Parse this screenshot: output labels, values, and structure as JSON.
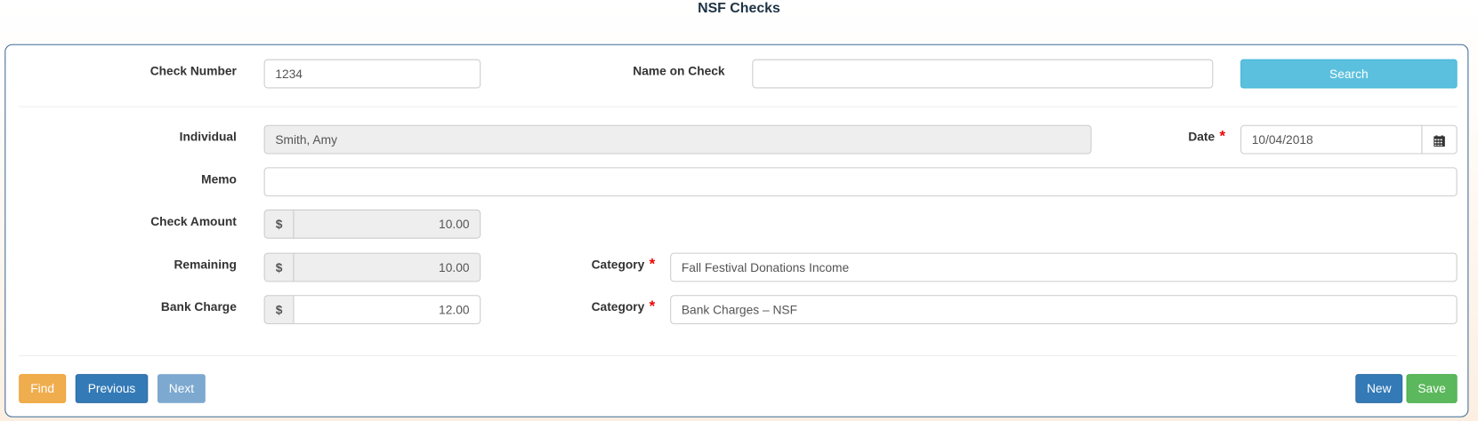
{
  "page_title": "NSF Checks",
  "search": {
    "check_number_label": "Check Number",
    "check_number_value": "1234",
    "name_on_check_label": "Name on Check",
    "name_on_check_value": "",
    "search_button": "Search"
  },
  "form": {
    "individual_label": "Individual",
    "individual_value": "Smith, Amy",
    "date_label": "Date",
    "date_value": "10/04/2018",
    "memo_label": "Memo",
    "memo_value": "",
    "check_amount_label": "Check Amount",
    "check_amount_value": "10.00",
    "remaining_label": "Remaining",
    "remaining_value": "10.00",
    "bank_charge_label": "Bank Charge",
    "bank_charge_value": "12.00",
    "currency_symbol": "$",
    "category_label": "Category",
    "category_1_value": "Fall Festival Donations Income",
    "category_2_value": "Bank Charges – NSF",
    "required_marker": "*"
  },
  "footer": {
    "find": "Find",
    "previous": "Previous",
    "next": "Next",
    "new": "New",
    "save": "Save"
  },
  "colors": {
    "search": "#5bc0de",
    "find": "#f0ad4e",
    "primary": "#337ab7",
    "disabled_primary": "#7da8cf",
    "save": "#5cb85c",
    "panel_border": "#3f6b97",
    "required": "#ee0000"
  }
}
